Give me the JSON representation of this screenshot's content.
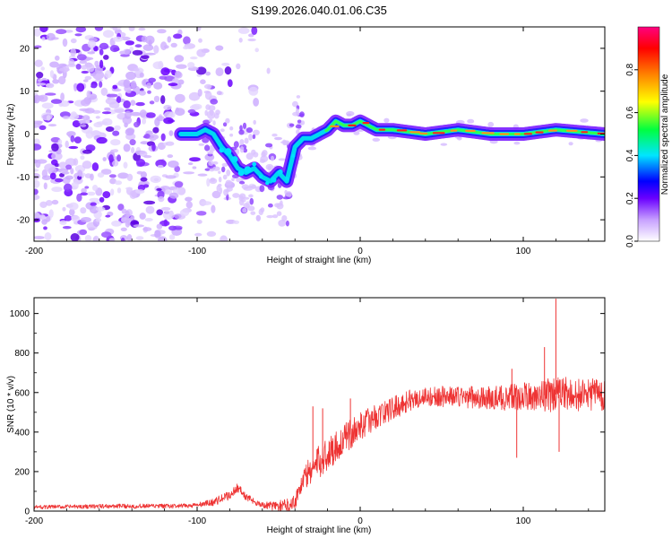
{
  "figure_title": "S199.2026.040.01.06.C35",
  "chart_data": [
    {
      "type": "heatmap",
      "name": "spectrogram",
      "xlabel": "Height of straight line (km)",
      "ylabel": "Frequency (Hz)",
      "xlim": [
        -200,
        150
      ],
      "ylim": [
        -25,
        25
      ],
      "xticks": [
        -200,
        -100,
        0,
        100
      ],
      "yticks": [
        -20,
        -10,
        0,
        10,
        20
      ],
      "colorbar": {
        "label": "Normalized spectral amplitude",
        "range": [
          0.0,
          1.0
        ],
        "ticks": [
          0.0,
          0.2,
          0.4,
          0.6,
          0.8
        ],
        "colors": [
          "#ffffff",
          "#c7a0ff",
          "#6a00ff",
          "#0000ff",
          "#00e5ff",
          "#00ff40",
          "#ffff00",
          "#ff8000",
          "#ff0000",
          "#ff0080"
        ]
      },
      "ridge_frequency_hz": {
        "x": [
          -110,
          -100,
          -95,
          -90,
          -85,
          -80,
          -75,
          -70,
          -65,
          -60,
          -55,
          -50,
          -45,
          -40,
          -35,
          -30,
          -25,
          -20,
          -15,
          -10,
          -5,
          0,
          5,
          10,
          20,
          40,
          60,
          80,
          100,
          120,
          150
        ],
        "y": [
          0,
          0,
          1,
          0,
          -3,
          -5,
          -8,
          -9,
          -8,
          -10,
          -11,
          -9,
          -11,
          -3,
          -1,
          -1,
          0,
          1,
          3,
          2,
          2,
          3,
          2,
          1,
          1,
          0,
          1,
          0,
          0,
          1,
          0
        ]
      },
      "scatter_region_km": [
        -200,
        -60
      ]
    },
    {
      "type": "line",
      "name": "snr",
      "xlabel": "Height of straight line (km)",
      "ylabel": "SNR (10 * v/v)",
      "xlim": [
        -200,
        150
      ],
      "ylim": [
        0,
        1080
      ],
      "xticks": [
        -200,
        -100,
        0,
        100
      ],
      "yticks": [
        0,
        200,
        400,
        600,
        800,
        1000
      ],
      "color": "#ee3333",
      "trend": {
        "x": [
          -200,
          -150,
          -110,
          -100,
          -90,
          -80,
          -75,
          -70,
          -60,
          -50,
          -45,
          -40,
          -35,
          -30,
          -20,
          -10,
          0,
          10,
          20,
          30,
          40,
          60,
          80,
          100,
          120,
          150
        ],
        "y": [
          20,
          25,
          25,
          30,
          45,
          80,
          120,
          70,
          30,
          25,
          30,
          50,
          160,
          210,
          290,
          360,
          430,
          480,
          520,
          560,
          580,
          580,
          570,
          580,
          590,
          590
        ]
      },
      "noise_amplitude": {
        "x": [
          -200,
          -100,
          -80,
          -60,
          -40,
          -30,
          -20,
          0,
          40,
          80,
          100,
          120,
          150
        ],
        "y": [
          10,
          12,
          25,
          15,
          40,
          80,
          90,
          70,
          50,
          60,
          70,
          90,
          80
        ]
      },
      "spikes": [
        {
          "x": -29,
          "y": 530
        },
        {
          "x": -23,
          "y": 520
        },
        {
          "x": -6,
          "y": 570
        },
        {
          "x": 93,
          "y": 720
        },
        {
          "x": 96,
          "y": 270
        },
        {
          "x": 113,
          "y": 830
        },
        {
          "x": 120,
          "y": 1075
        },
        {
          "x": 122,
          "y": 300
        }
      ]
    }
  ]
}
